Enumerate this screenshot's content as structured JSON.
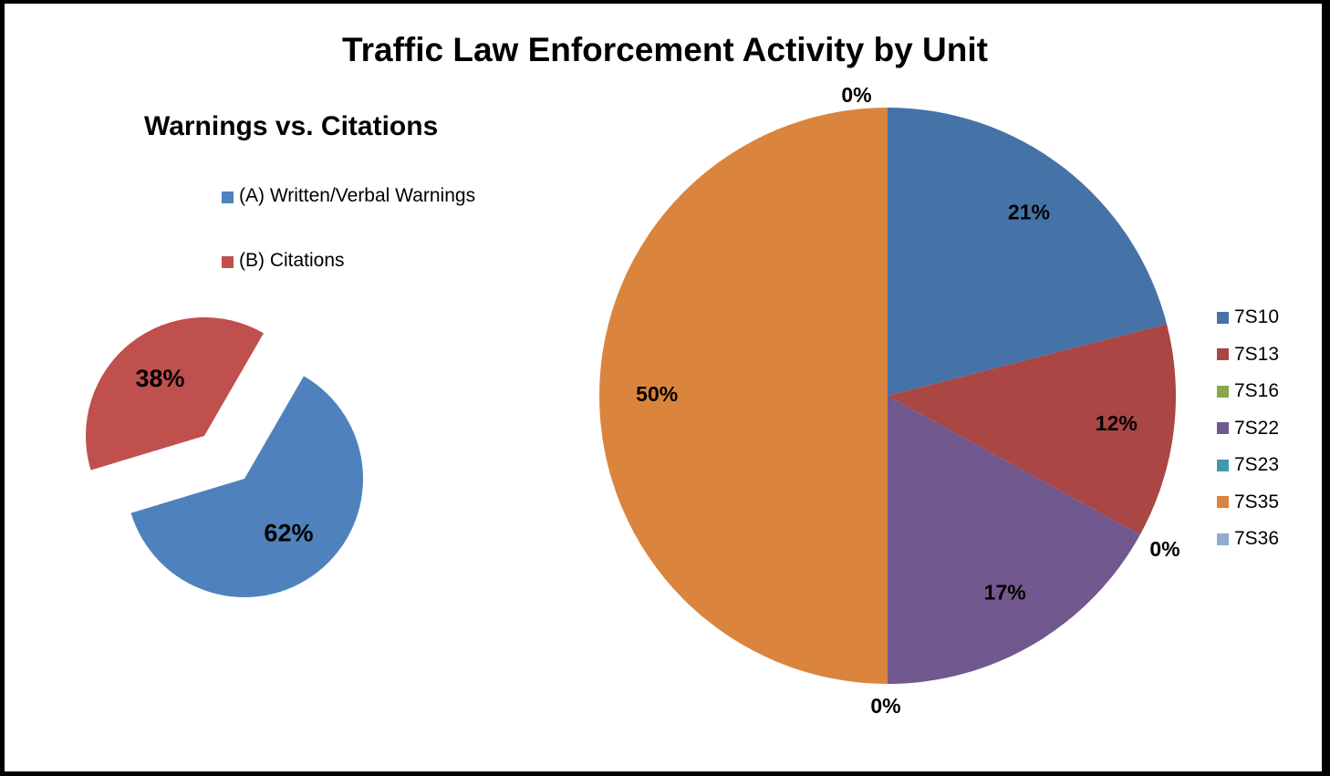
{
  "title": "Traffic Law Enforcement Activity by Unit",
  "chart_data": [
    {
      "type": "pie",
      "title": "Warnings vs. Citations",
      "categories": [
        "(A) Written/Verbal Warnings",
        "(B) Citations"
      ],
      "values": [
        62,
        38
      ],
      "labels": [
        "62%",
        "38%"
      ],
      "colors": [
        "#4F81BD",
        "#C0504D"
      ],
      "exploded": true,
      "legend_position": "top"
    },
    {
      "type": "pie",
      "categories": [
        "7S10",
        "7S13",
        "7S16",
        "7S22",
        "7S23",
        "7S35",
        "7S36"
      ],
      "values": [
        21,
        12,
        0,
        17,
        0,
        50,
        0
      ],
      "labels": [
        "21%",
        "12%",
        "0%",
        "17%",
        "0%",
        "50%",
        "0%"
      ],
      "colors": [
        "#4572A7",
        "#AA4643",
        "#89A54E",
        "#71588F",
        "#4198AF",
        "#DB843D",
        "#93A9CF"
      ],
      "legend_position": "right"
    }
  ]
}
